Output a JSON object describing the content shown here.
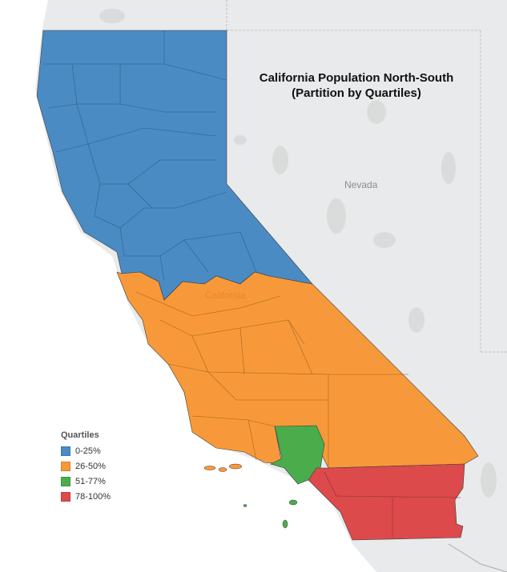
{
  "title_line1": "California Population North-South",
  "title_line2": "(Partition by Quartiles)",
  "labels": {
    "nevada": "Nevada",
    "california": "California"
  },
  "legend": {
    "title": "Quartiles",
    "items": [
      {
        "label": "0-25%",
        "color": "#4a8bc3"
      },
      {
        "label": "26-50%",
        "color": "#f7993a"
      },
      {
        "label": "51-77%",
        "color": "#4bac4b"
      },
      {
        "label": "78-100%",
        "color": "#dc4a4c"
      }
    ]
  }
}
